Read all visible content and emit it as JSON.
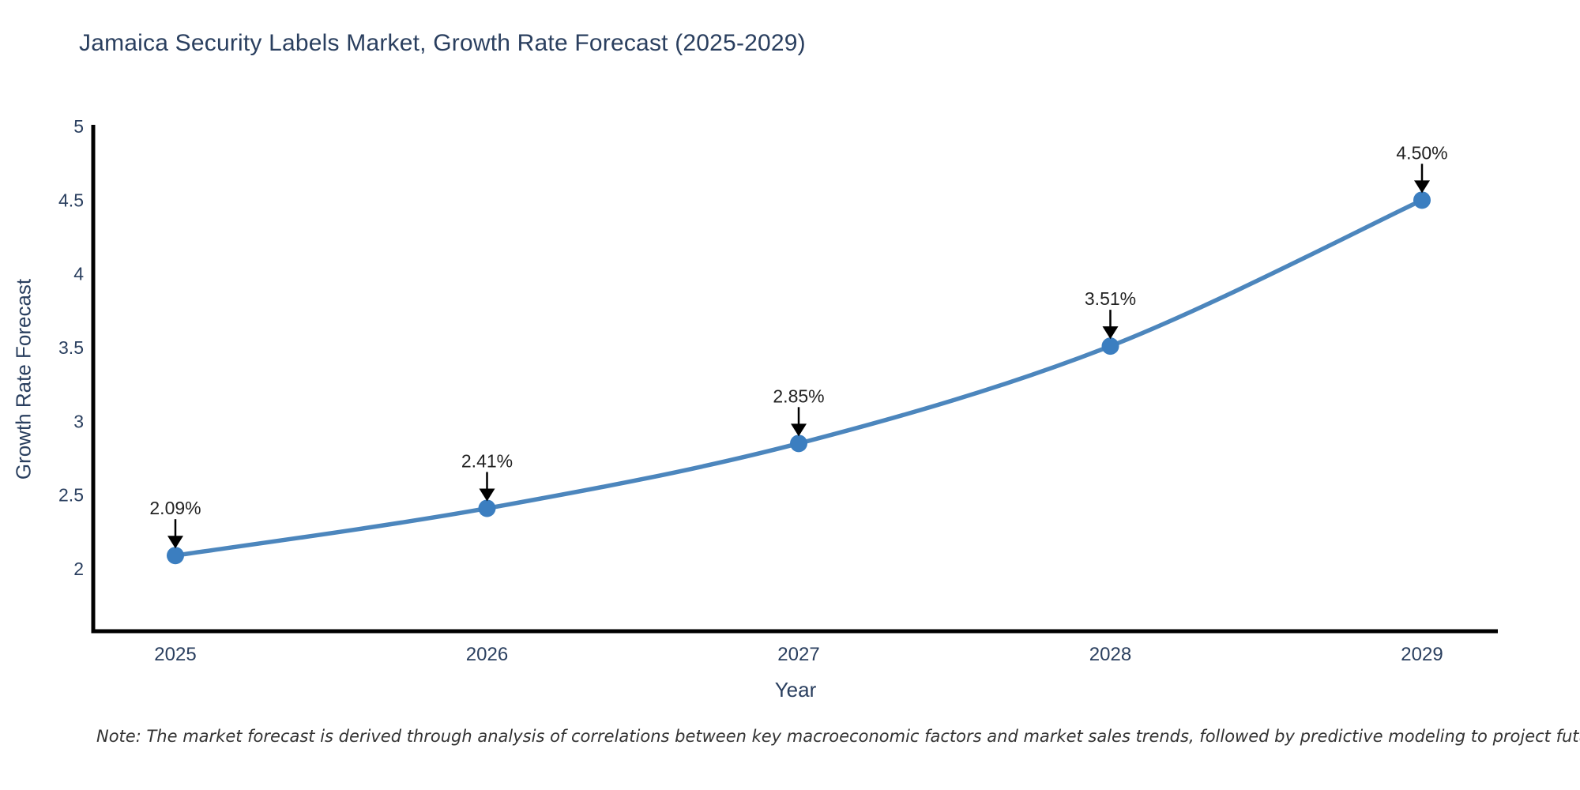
{
  "chart": {
    "note": "Note: The market forecast is derived through analysis of correlations between key macroeconomic factors and market sales trends, followed by predictive modeling to project future sales",
    "colors": {
      "font": "#2a3f5f",
      "axis": "#000000",
      "line": "#4c86bd",
      "marker": "#3b7ec0",
      "annotation_text": "#222222",
      "arrow": "#000000"
    }
  },
  "chart_data": {
    "type": "line",
    "title": "Jamaica Security Labels Market, Growth Rate Forecast (2025-2029)",
    "xlabel": "Year",
    "ylabel": "Growth Rate Forecast",
    "categories": [
      "2025",
      "2026",
      "2027",
      "2028",
      "2029"
    ],
    "values": [
      2.09,
      2.41,
      2.85,
      3.51,
      4.5
    ],
    "data_labels": [
      "2.09%",
      "2.41%",
      "2.85%",
      "3.51%",
      "4.50%"
    ],
    "y_ticks": [
      2,
      2.5,
      3,
      3.5,
      4,
      4.5,
      5
    ],
    "ylim": [
      1.57,
      5.0
    ],
    "grid": false,
    "legend": "none",
    "line_style": "spline",
    "marker_style": "circle",
    "annotations": "value labels with downward black arrows above each data point"
  }
}
